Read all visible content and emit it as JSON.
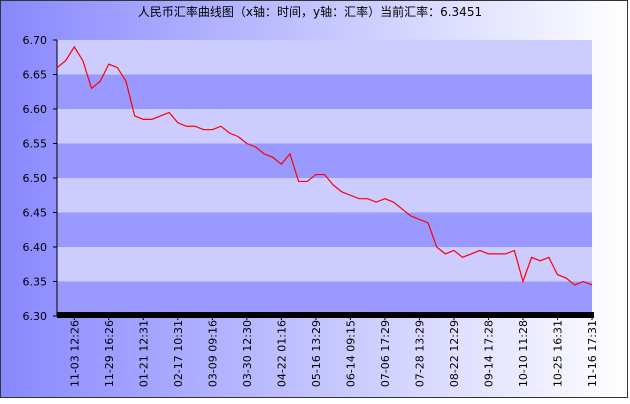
{
  "chart_data": {
    "type": "line",
    "title": "人民币汇率曲线图（x轴：时间，y轴：汇率）当前汇率：6.3451",
    "categories": [
      null,
      null,
      "11-03 12:26",
      null,
      null,
      null,
      "11-29 16:26",
      null,
      null,
      null,
      "01-21 12:31",
      null,
      null,
      null,
      "02-17 10:31",
      null,
      null,
      null,
      "03-09 09:16",
      null,
      null,
      null,
      "03-30 12:30",
      null,
      null,
      null,
      "04-22 01:16",
      null,
      null,
      null,
      "05-16 13:29",
      null,
      null,
      null,
      "06-14 09:15",
      null,
      null,
      null,
      "07-06 17:29",
      null,
      null,
      null,
      "07-28 13:29",
      null,
      null,
      null,
      "08-22 12:29",
      null,
      null,
      null,
      "09-14 17:28",
      null,
      null,
      null,
      "10-10 11:28",
      null,
      null,
      null,
      "10-25 16:31",
      null,
      null,
      null,
      "11-16 17:31"
    ],
    "values": [
      6.66,
      6.67,
      6.69,
      6.67,
      6.63,
      6.64,
      6.665,
      6.66,
      6.64,
      6.59,
      6.585,
      6.585,
      6.59,
      6.595,
      6.58,
      6.575,
      6.575,
      6.57,
      6.57,
      6.575,
      6.565,
      6.56,
      6.55,
      6.545,
      6.535,
      6.53,
      6.52,
      6.535,
      6.495,
      6.495,
      6.505,
      6.505,
      6.49,
      6.48,
      6.475,
      6.47,
      6.47,
      6.465,
      6.47,
      6.465,
      6.455,
      6.445,
      6.44,
      6.435,
      6.4,
      6.39,
      6.395,
      6.385,
      6.39,
      6.395,
      6.39,
      6.39,
      6.39,
      6.395,
      6.35,
      6.385,
      6.38,
      6.385,
      6.36,
      6.355,
      6.345,
      6.35,
      6.345
    ],
    "color": "#ff0000",
    "ylim": [
      6.3,
      6.7
    ],
    "yticks": [
      {
        "value": 6.3,
        "label": "6.30"
      },
      6.35,
      {
        "value": 6.4,
        "label": "6.40"
      },
      6.45,
      {
        "value": 6.5,
        "label": "6.50"
      },
      6.55,
      {
        "value": 6.6,
        "label": "6.60"
      },
      6.65,
      {
        "value": 6.7,
        "label": "6.70"
      }
    ],
    "band_colors": [
      "#9999ff",
      "#ccccff"
    ]
  }
}
